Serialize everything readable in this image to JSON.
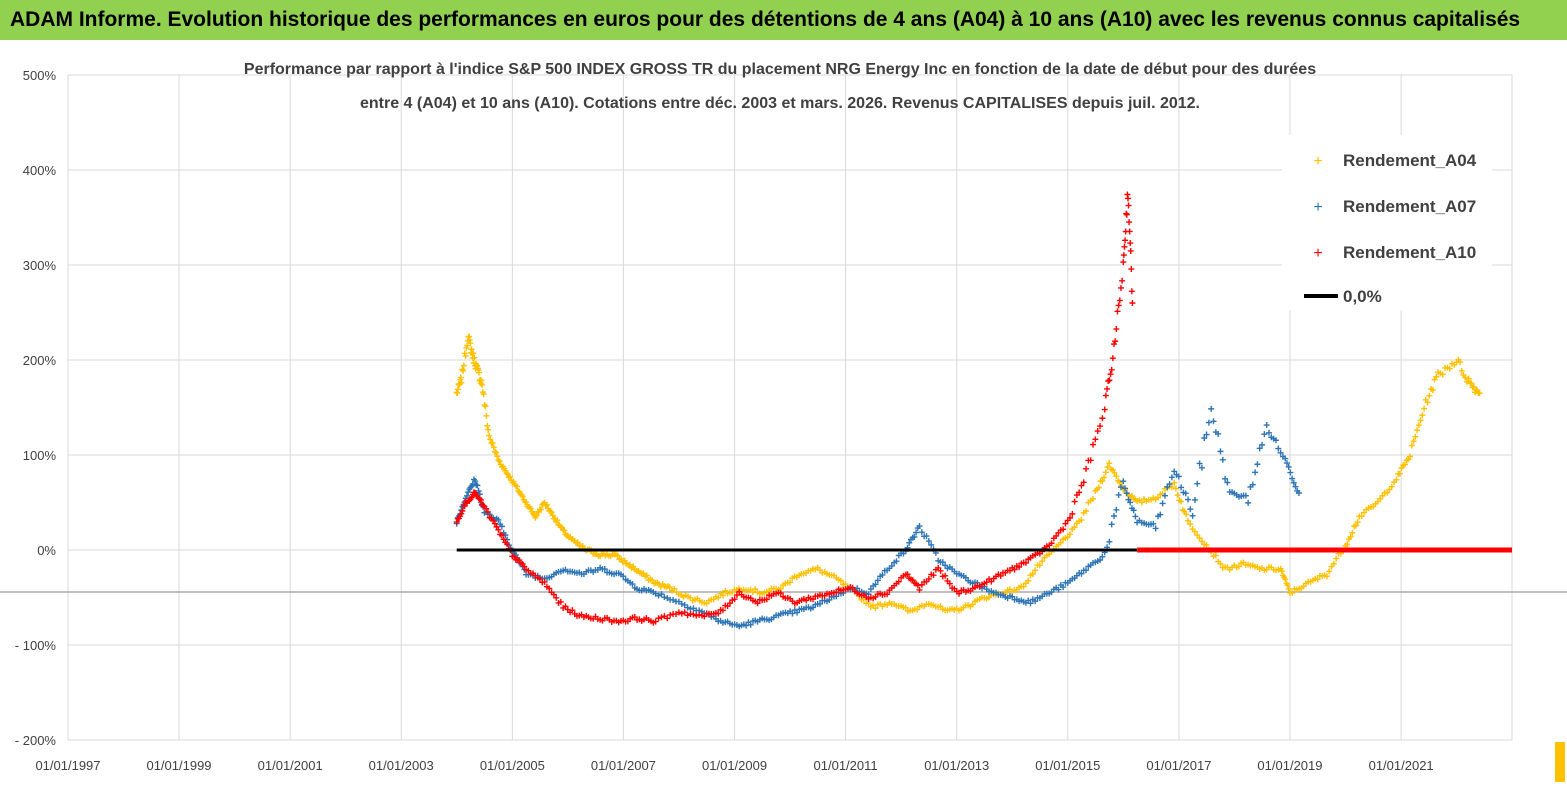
{
  "banner": {
    "title": "ADAM Informe. Evolution historique des performances en euros pour des détentions de 4 ans (A04) à 10 ans (A10) avec les revenus connus capitalisés",
    "background": "#92d050"
  },
  "chart_data": {
    "type": "scatter",
    "title_lines": [
      "Performance par rapport à l'indice S&P 500 INDEX GROSS TR  du placement NRG Energy Inc en fonction de la date de début pour des durées",
      "entre 4 (A04) et 10 ans (A10). Cotations entre déc. 2003 et mars. 2026. Revenus CAPITALISES depuis juil. 2012."
    ],
    "x_axis": {
      "type": "date",
      "min": "1997-01-01",
      "max": "2022-12-31",
      "ticks": [
        "1997-01-01",
        "1999-01-01",
        "2001-01-01",
        "2003-01-01",
        "2005-01-01",
        "2007-01-01",
        "2009-01-01",
        "2011-01-01",
        "2013-01-01",
        "2015-01-01",
        "2017-01-01",
        "2019-01-01",
        "2021-01-01"
      ],
      "tick_labels": [
        "01/01/1997",
        "01/01/1999",
        "01/01/2001",
        "01/01/2003",
        "01/01/2005",
        "01/01/2007",
        "01/01/2009",
        "01/01/2011",
        "01/01/2013",
        "01/01/2015",
        "01/01/2017",
        "01/01/2019",
        "01/01/2021"
      ]
    },
    "y_axis": {
      "min": -200,
      "max": 500,
      "ticks": [
        500,
        400,
        300,
        200,
        100,
        0,
        -100,
        -200
      ],
      "tick_labels": [
        "500%",
        "400%",
        "300%",
        "200%",
        "100%",
        "0%",
        "- 100%",
        "- 200%"
      ]
    },
    "grid": true,
    "legend_position": "top-right",
    "series": [
      {
        "name": "Rendement_A04",
        "color": "#ffc000",
        "marker": "+",
        "points": [
          [
            "2004-01-01",
            165
          ],
          [
            "2004-02-01",
            180
          ],
          [
            "2004-03-15",
            225
          ],
          [
            "2004-04-15",
            205
          ],
          [
            "2004-05-15",
            190
          ],
          [
            "2004-06-15",
            175
          ],
          [
            "2004-08-01",
            120
          ],
          [
            "2004-10-01",
            95
          ],
          [
            "2004-12-01",
            80
          ],
          [
            "2005-02-01",
            65
          ],
          [
            "2005-04-01",
            50
          ],
          [
            "2005-06-01",
            35
          ],
          [
            "2005-08-01",
            50
          ],
          [
            "2005-10-01",
            35
          ],
          [
            "2005-12-01",
            20
          ],
          [
            "2006-02-01",
            10
          ],
          [
            "2006-05-01",
            0
          ],
          [
            "2006-08-01",
            -5
          ],
          [
            "2006-11-01",
            -5
          ],
          [
            "2007-02-01",
            -15
          ],
          [
            "2007-05-01",
            -25
          ],
          [
            "2007-08-01",
            -35
          ],
          [
            "2007-11-01",
            -40
          ],
          [
            "2008-03-01",
            -50
          ],
          [
            "2008-07-01",
            -55
          ],
          [
            "2008-11-01",
            -45
          ],
          [
            "2009-03-01",
            -40
          ],
          [
            "2009-07-01",
            -45
          ],
          [
            "2009-11-01",
            -40
          ],
          [
            "2010-03-01",
            -25
          ],
          [
            "2010-07-01",
            -20
          ],
          [
            "2010-11-01",
            -30
          ],
          [
            "2011-03-01",
            -45
          ],
          [
            "2011-07-01",
            -60
          ],
          [
            "2011-11-01",
            -55
          ],
          [
            "2012-03-01",
            -65
          ],
          [
            "2012-07-01",
            -55
          ],
          [
            "2012-11-01",
            -65
          ],
          [
            "2013-03-01",
            -60
          ],
          [
            "2013-07-01",
            -50
          ],
          [
            "2013-11-01",
            -45
          ],
          [
            "2014-03-01",
            -40
          ],
          [
            "2014-07-01",
            -15
          ],
          [
            "2014-11-01",
            5
          ],
          [
            "2015-03-01",
            25
          ],
          [
            "2015-07-01",
            60
          ],
          [
            "2015-10-01",
            90
          ],
          [
            "2016-01-01",
            65
          ],
          [
            "2016-04-01",
            50
          ],
          [
            "2016-08-01",
            55
          ],
          [
            "2016-12-01",
            70
          ],
          [
            "2017-03-01",
            30
          ],
          [
            "2017-07-01",
            5
          ],
          [
            "2017-11-01",
            -20
          ],
          [
            "2018-03-01",
            -15
          ],
          [
            "2018-07-01",
            -20
          ],
          [
            "2018-11-01",
            -20
          ],
          [
            "2019-01-01",
            -45
          ],
          [
            "2019-05-01",
            -35
          ],
          [
            "2019-09-01",
            -25
          ],
          [
            "2020-01-01",
            5
          ],
          [
            "2020-04-01",
            35
          ],
          [
            "2020-08-01",
            50
          ],
          [
            "2020-12-01",
            75
          ],
          [
            "2021-03-01",
            100
          ],
          [
            "2021-06-01",
            150
          ],
          [
            "2021-09-01",
            185
          ],
          [
            "2022-01-01",
            200
          ],
          [
            "2022-04-01",
            175
          ],
          [
            "2022-06-01",
            165
          ]
        ]
      },
      {
        "name": "Rendement_A07",
        "color": "#2e75b6",
        "marker": "+",
        "points": [
          [
            "2004-01-01",
            30
          ],
          [
            "2004-03-01",
            55
          ],
          [
            "2004-05-01",
            75
          ],
          [
            "2004-07-01",
            40
          ],
          [
            "2004-10-01",
            30
          ],
          [
            "2005-01-01",
            0
          ],
          [
            "2005-04-01",
            -25
          ],
          [
            "2005-08-01",
            -30
          ],
          [
            "2005-12-01",
            -20
          ],
          [
            "2006-04-01",
            -25
          ],
          [
            "2006-08-01",
            -20
          ],
          [
            "2006-12-01",
            -25
          ],
          [
            "2007-04-01",
            -40
          ],
          [
            "2007-08-01",
            -45
          ],
          [
            "2008-01-01",
            -55
          ],
          [
            "2008-06-01",
            -65
          ],
          [
            "2008-10-01",
            -75
          ],
          [
            "2009-02-01",
            -80
          ],
          [
            "2009-06-01",
            -75
          ],
          [
            "2009-10-01",
            -70
          ],
          [
            "2010-02-01",
            -65
          ],
          [
            "2010-06-01",
            -60
          ],
          [
            "2010-10-01",
            -50
          ],
          [
            "2011-02-01",
            -40
          ],
          [
            "2011-06-01",
            -45
          ],
          [
            "2011-10-01",
            -20
          ],
          [
            "2012-02-01",
            0
          ],
          [
            "2012-05-01",
            25
          ],
          [
            "2012-09-01",
            -10
          ],
          [
            "2013-01-01",
            -25
          ],
          [
            "2013-05-01",
            -35
          ],
          [
            "2013-09-01",
            -45
          ],
          [
            "2014-01-01",
            -50
          ],
          [
            "2014-05-01",
            -55
          ],
          [
            "2014-09-01",
            -45
          ],
          [
            "2015-01-01",
            -35
          ],
          [
            "2015-05-01",
            -20
          ],
          [
            "2015-09-01",
            -5
          ],
          [
            "2016-01-01",
            70
          ],
          [
            "2016-04-01",
            30
          ],
          [
            "2016-08-01",
            25
          ],
          [
            "2016-12-01",
            85
          ],
          [
            "2017-04-01",
            40
          ],
          [
            "2017-08-01",
            150
          ],
          [
            "2017-12-01",
            60
          ],
          [
            "2018-04-01",
            55
          ],
          [
            "2018-08-01",
            130
          ],
          [
            "2018-12-01",
            95
          ],
          [
            "2019-03-01",
            60
          ]
        ]
      },
      {
        "name": "Rendement_A10",
        "color": "#ff0000",
        "marker": "+",
        "points": [
          [
            "2004-01-01",
            30
          ],
          [
            "2004-03-01",
            50
          ],
          [
            "2004-05-01",
            60
          ],
          [
            "2004-07-01",
            45
          ],
          [
            "2004-10-01",
            20
          ],
          [
            "2005-01-01",
            -5
          ],
          [
            "2005-04-01",
            -20
          ],
          [
            "2005-08-01",
            -35
          ],
          [
            "2005-12-01",
            -60
          ],
          [
            "2006-04-01",
            -70
          ],
          [
            "2006-08-01",
            -72
          ],
          [
            "2006-12-01",
            -75
          ],
          [
            "2007-04-01",
            -72
          ],
          [
            "2007-08-01",
            -75
          ],
          [
            "2008-01-01",
            -65
          ],
          [
            "2008-06-01",
            -70
          ],
          [
            "2008-10-01",
            -65
          ],
          [
            "2009-02-01",
            -45
          ],
          [
            "2009-06-01",
            -55
          ],
          [
            "2009-10-01",
            -45
          ],
          [
            "2010-02-01",
            -55
          ],
          [
            "2010-06-01",
            -50
          ],
          [
            "2010-10-01",
            -45
          ],
          [
            "2011-02-01",
            -40
          ],
          [
            "2011-06-01",
            -50
          ],
          [
            "2011-10-01",
            -45
          ],
          [
            "2012-02-01",
            -25
          ],
          [
            "2012-05-01",
            -40
          ],
          [
            "2012-09-01",
            -20
          ],
          [
            "2013-01-01",
            -45
          ],
          [
            "2013-05-01",
            -40
          ],
          [
            "2013-09-01",
            -30
          ],
          [
            "2014-01-01",
            -20
          ],
          [
            "2014-05-01",
            -10
          ],
          [
            "2014-09-01",
            5
          ],
          [
            "2015-01-01",
            30
          ],
          [
            "2015-05-01",
            80
          ],
          [
            "2015-09-01",
            150
          ],
          [
            "2015-11-01",
            210
          ],
          [
            "2016-01-01",
            300
          ],
          [
            "2016-02-01",
            380
          ],
          [
            "2016-03-01",
            260
          ]
        ]
      }
    ],
    "zero_line": {
      "name": "0,0%",
      "color": "#000000",
      "red_segment_color": "#ff0000",
      "x_start": "2004-01-01",
      "x_red_start": "2016-04-01",
      "x_end": "2022-12-31",
      "value": 0
    }
  }
}
